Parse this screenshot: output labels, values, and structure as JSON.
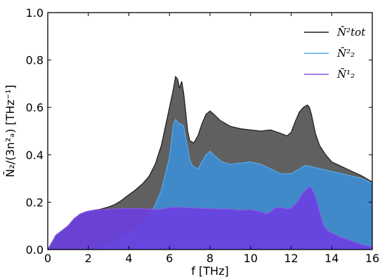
{
  "chart_data": {
    "type": "area",
    "xlabel": "f [THz]",
    "ylabel": "N̄₂/(3n²ₐ) [THz⁻¹]",
    "xlim": [
      0,
      16
    ],
    "ylim": [
      0,
      1.0
    ],
    "xticks": [
      "0",
      "2",
      "4",
      "6",
      "8",
      "10",
      "12",
      "14",
      "16"
    ],
    "yticks": [
      "0.0",
      "0.2",
      "0.4",
      "0.6",
      "0.8",
      "1.0"
    ],
    "grid": false,
    "legend_position": "top-right",
    "series": [
      {
        "name": "N̄²tot",
        "color": "#606060",
        "line_color": "#1a1a1a",
        "x": [
          0,
          0.2,
          0.4,
          0.7,
          1.0,
          1.3,
          1.6,
          1.9,
          2.2,
          2.6,
          3.0,
          3.3,
          3.6,
          3.9,
          4.3,
          4.7,
          5.0,
          5.3,
          5.6,
          5.8,
          6.0,
          6.2,
          6.3,
          6.4,
          6.5,
          6.6,
          6.7,
          6.8,
          6.9,
          7.0,
          7.2,
          7.4,
          7.6,
          7.8,
          8.0,
          8.2,
          8.5,
          9.0,
          9.5,
          10.0,
          10.5,
          11.0,
          11.5,
          11.8,
          12.0,
          12.2,
          12.4,
          12.6,
          12.8,
          12.9,
          13.0,
          13.2,
          13.4,
          13.7,
          14.0,
          14.5,
          15.0,
          15.5,
          16.0
        ],
        "values": [
          0.0,
          0.03,
          0.06,
          0.08,
          0.1,
          0.13,
          0.15,
          0.16,
          0.165,
          0.17,
          0.18,
          0.19,
          0.205,
          0.225,
          0.25,
          0.28,
          0.31,
          0.36,
          0.44,
          0.52,
          0.6,
          0.68,
          0.73,
          0.72,
          0.68,
          0.71,
          0.66,
          0.58,
          0.5,
          0.46,
          0.45,
          0.48,
          0.53,
          0.57,
          0.585,
          0.57,
          0.545,
          0.52,
          0.51,
          0.505,
          0.5,
          0.505,
          0.49,
          0.48,
          0.495,
          0.54,
          0.58,
          0.6,
          0.61,
          0.6,
          0.57,
          0.49,
          0.44,
          0.4,
          0.37,
          0.35,
          0.33,
          0.31,
          0.285
        ]
      },
      {
        "name": "N̄²₂",
        "color": "#3d8fd6",
        "line_color": "#5aa8e6",
        "x": [
          0,
          1.0,
          2.0,
          2.5,
          3.0,
          3.5,
          4.0,
          4.5,
          5.0,
          5.3,
          5.6,
          5.8,
          6.0,
          6.1,
          6.2,
          6.3,
          6.4,
          6.5,
          6.6,
          6.7,
          6.8,
          6.9,
          7.0,
          7.1,
          7.2,
          7.4,
          7.6,
          7.8,
          8.0,
          8.3,
          8.6,
          9.0,
          9.5,
          10.0,
          10.5,
          11.0,
          11.5,
          12.0,
          12.4,
          12.7,
          13.0,
          13.5,
          14.0,
          14.5,
          15.0,
          15.5,
          16.0
        ],
        "values": [
          0.0,
          0.0,
          0.0,
          0.0,
          0.02,
          0.04,
          0.07,
          0.1,
          0.14,
          0.19,
          0.25,
          0.32,
          0.39,
          0.46,
          0.53,
          0.55,
          0.54,
          0.53,
          0.53,
          0.52,
          0.47,
          0.43,
          0.38,
          0.36,
          0.35,
          0.34,
          0.37,
          0.4,
          0.415,
          0.39,
          0.37,
          0.36,
          0.365,
          0.37,
          0.36,
          0.34,
          0.32,
          0.32,
          0.34,
          0.355,
          0.35,
          0.34,
          0.33,
          0.32,
          0.31,
          0.3,
          0.28
        ]
      },
      {
        "name": "N̄¹₂",
        "color": "#6a3ee0",
        "line_color": "#8a55e8",
        "x": [
          0,
          0.2,
          0.4,
          0.7,
          1.0,
          1.3,
          1.6,
          1.9,
          2.2,
          2.6,
          3.0,
          3.5,
          4.0,
          4.5,
          5.0,
          5.5,
          6.0,
          6.5,
          7.0,
          7.5,
          8.0,
          8.5,
          9.0,
          9.5,
          10.0,
          10.5,
          10.8,
          11.0,
          11.2,
          11.5,
          11.8,
          12.0,
          12.3,
          12.6,
          12.9,
          13.0,
          13.2,
          13.4,
          13.6,
          13.8,
          14.0,
          14.5,
          15.0,
          15.5,
          16.0
        ],
        "values": [
          0.0,
          0.03,
          0.06,
          0.08,
          0.1,
          0.13,
          0.15,
          0.16,
          0.165,
          0.168,
          0.17,
          0.172,
          0.173,
          0.173,
          0.17,
          0.168,
          0.177,
          0.178,
          0.176,
          0.174,
          0.172,
          0.17,
          0.17,
          0.165,
          0.168,
          0.16,
          0.15,
          0.16,
          0.175,
          0.178,
          0.17,
          0.175,
          0.2,
          0.24,
          0.265,
          0.26,
          0.22,
          0.16,
          0.1,
          0.08,
          0.07,
          0.05,
          0.035,
          0.02,
          0.01
        ]
      }
    ]
  }
}
